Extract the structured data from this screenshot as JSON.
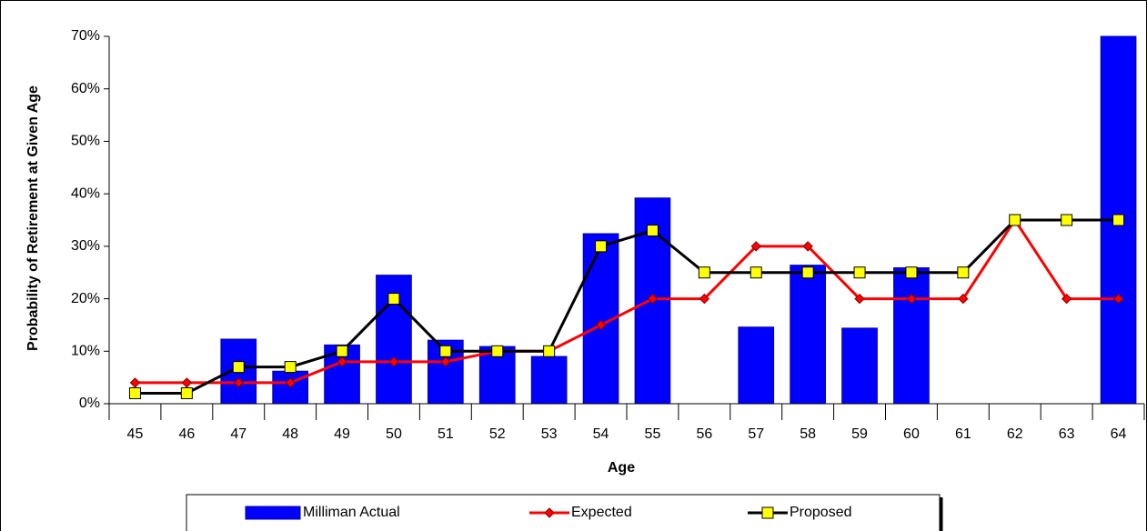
{
  "chart_data": {
    "type": "bar-line",
    "x_label": "Age",
    "y_label": "Probability of Retirement at Given Age",
    "categories": [
      "45",
      "46",
      "47",
      "48",
      "49",
      "50",
      "51",
      "52",
      "53",
      "54",
      "55",
      "56",
      "57",
      "58",
      "59",
      "60",
      "61",
      "62",
      "63",
      "64"
    ],
    "series": [
      {
        "name": "Milliman Actual",
        "kind": "bar",
        "color": "#0000ff",
        "values": [
          null,
          null,
          12.3,
          6.2,
          11.2,
          24.5,
          12.1,
          10.9,
          9,
          32.4,
          39.2,
          null,
          14.6,
          26.4,
          14.4,
          25.9,
          null,
          null,
          null,
          70
        ]
      },
      {
        "name": "Expected",
        "kind": "line",
        "color": "#ff0000",
        "marker": "diamond",
        "values": [
          4,
          4,
          4,
          4,
          8,
          8,
          8,
          10,
          10,
          15,
          20,
          20,
          30,
          30,
          20,
          20,
          20,
          35,
          20,
          20
        ]
      },
      {
        "name": "Proposed",
        "kind": "line",
        "color": "#000000",
        "marker": "square",
        "marker_color": "#ffff00",
        "values": [
          2,
          2,
          7,
          7,
          10,
          20,
          10,
          10,
          10,
          30,
          33,
          25,
          25,
          25,
          25,
          25,
          25,
          35,
          35,
          35
        ]
      }
    ],
    "ylim": [
      0,
      70
    ],
    "yticks": [
      {
        "value": 0,
        "label": "0%"
      },
      {
        "value": 10,
        "label": "10%"
      },
      {
        "value": 20,
        "label": "20%"
      },
      {
        "value": 30,
        "label": "30%"
      },
      {
        "value": 40,
        "label": "40%"
      },
      {
        "value": 50,
        "label": "50%"
      },
      {
        "value": 60,
        "label": "60%"
      },
      {
        "value": 70,
        "label": "70%"
      }
    ],
    "legend": "bottom"
  }
}
